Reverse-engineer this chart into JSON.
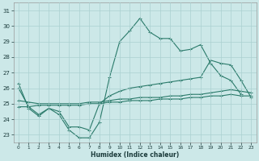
{
  "xlabel": "Humidex (Indice chaleur)",
  "x_values": [
    0,
    1,
    2,
    3,
    4,
    5,
    6,
    7,
    8,
    9,
    10,
    11,
    12,
    13,
    14,
    15,
    16,
    17,
    18,
    19,
    20,
    21,
    22,
    23
  ],
  "line1": [
    26.3,
    24.7,
    24.2,
    24.7,
    24.3,
    23.3,
    22.8,
    22.8,
    23.8,
    26.7,
    29.0,
    29.7,
    30.5,
    29.6,
    29.2,
    29.2,
    28.4,
    28.5,
    28.8,
    27.6,
    26.8,
    26.5,
    25.6,
    null
  ],
  "line2": [
    26.0,
    24.8,
    24.3,
    24.7,
    24.5,
    23.5,
    23.5,
    23.3,
    25.0,
    25.5,
    25.8,
    26.0,
    26.1,
    26.2,
    26.3,
    26.4,
    26.5,
    26.6,
    26.7,
    27.8,
    27.6,
    27.5,
    26.5,
    25.4
  ],
  "line3": [
    25.2,
    25.1,
    25.0,
    25.0,
    25.0,
    25.0,
    25.0,
    25.1,
    25.1,
    25.2,
    25.3,
    25.3,
    25.4,
    25.4,
    25.4,
    25.5,
    25.5,
    25.6,
    25.6,
    25.7,
    25.8,
    25.9,
    25.8,
    25.7
  ],
  "line4": [
    24.8,
    24.8,
    24.9,
    24.9,
    24.9,
    24.9,
    24.9,
    25.0,
    25.0,
    25.1,
    25.1,
    25.2,
    25.2,
    25.2,
    25.3,
    25.3,
    25.3,
    25.4,
    25.4,
    25.5,
    25.5,
    25.6,
    25.5,
    25.5
  ],
  "line_color": "#2a7a6a",
  "bg_color": "#cce8e8",
  "grid_color": "#aad0d0",
  "ylim": [
    22.5,
    31.5
  ],
  "yticks": [
    23,
    24,
    25,
    26,
    27,
    28,
    29,
    30,
    31
  ]
}
